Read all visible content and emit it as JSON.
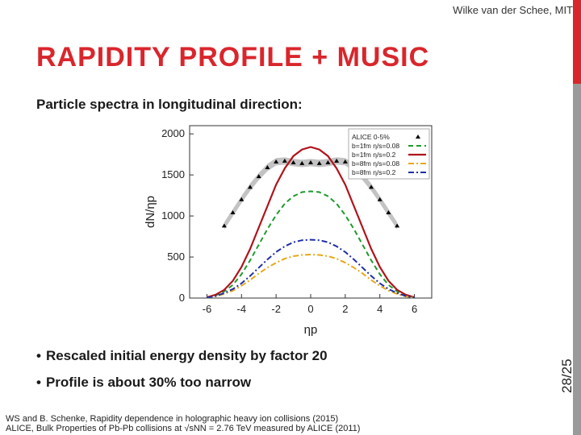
{
  "header": {
    "author": "Wilke van der Schee, MIT"
  },
  "slide": {
    "title": "RAPIDITY PROFILE + MUSIC",
    "subtitle": "Particle spectra in longitudinal direction:",
    "bullets": [
      "Rescaled initial energy density by factor 20",
      "Profile is about 30% too narrow"
    ],
    "references": [
      "WS and B. Schenke, Rapidity dependence in holographic heavy ion collisions (2015)",
      "ALICE, Bulk Properties of Pb-Pb collisions at √sNN = 2.76 TeV measured by ALICE (2011)"
    ],
    "slide_number": "28/25"
  },
  "colors": {
    "accent": "#d9262c",
    "sidebar": "#9a9a9a"
  },
  "chart_data": {
    "type": "line",
    "xlabel": "ηp",
    "ylabel": "dN/ηp",
    "xlim": [
      -7,
      7
    ],
    "ylim": [
      0,
      2100
    ],
    "xticks": [
      "-6",
      "-4",
      "-2",
      "0",
      "2",
      "4",
      "6"
    ],
    "yticks": [
      "0",
      "500",
      "1000",
      "1500",
      "2000"
    ],
    "legend_position": "top-right",
    "series": [
      {
        "name": "ALICE 0-5%",
        "style": "points-with-band",
        "color": "#000000",
        "x": [
          -5,
          -4.5,
          -4,
          -3.5,
          -3,
          -2.5,
          -2,
          -1.5,
          -1,
          -0.5,
          0,
          0.5,
          1,
          1.5,
          2,
          2.5,
          3,
          3.5,
          4,
          4.5,
          5
        ],
        "y": [
          880,
          1040,
          1200,
          1350,
          1480,
          1590,
          1660,
          1670,
          1650,
          1640,
          1650,
          1640,
          1650,
          1670,
          1660,
          1590,
          1480,
          1350,
          1200,
          1040,
          880
        ]
      },
      {
        "name": "b=1fm η/s=0.08",
        "style": "dashed",
        "color": "#1f9a2e",
        "x": [
          -6,
          -5.5,
          -5,
          -4.5,
          -4,
          -3.5,
          -3,
          -2.5,
          -2,
          -1.5,
          -1,
          -0.5,
          0,
          0.5,
          1,
          1.5,
          2,
          2.5,
          3,
          3.5,
          4,
          4.5,
          5,
          5.5,
          6
        ],
        "y": [
          10,
          30,
          80,
          160,
          290,
          460,
          650,
          840,
          1010,
          1150,
          1240,
          1290,
          1300,
          1290,
          1240,
          1150,
          1010,
          840,
          650,
          460,
          290,
          160,
          80,
          30,
          10
        ]
      },
      {
        "name": "b=1fm η/s=0.2",
        "style": "solid",
        "color": "#b0141b",
        "x": [
          -6,
          -5.5,
          -5,
          -4.5,
          -4,
          -3.5,
          -3,
          -2.5,
          -2,
          -1.5,
          -1,
          -0.5,
          0,
          0.5,
          1,
          1.5,
          2,
          2.5,
          3,
          3.5,
          4,
          4.5,
          5,
          5.5,
          6
        ],
        "y": [
          10,
          40,
          100,
          210,
          380,
          600,
          860,
          1120,
          1380,
          1580,
          1730,
          1810,
          1840,
          1810,
          1730,
          1580,
          1380,
          1120,
          860,
          600,
          380,
          210,
          100,
          40,
          10
        ]
      },
      {
        "name": "b=8fm η/s=0.08",
        "style": "dash-dot",
        "color": "#e8a817",
        "x": [
          -6,
          -5.5,
          -5,
          -4.5,
          -4,
          -3.5,
          -3,
          -2.5,
          -2,
          -1.5,
          -1,
          -0.5,
          0,
          0.5,
          1,
          1.5,
          2,
          2.5,
          3,
          3.5,
          4,
          4.5,
          5,
          5.5,
          6
        ],
        "y": [
          5,
          20,
          50,
          90,
          150,
          220,
          300,
          370,
          430,
          480,
          510,
          525,
          530,
          525,
          510,
          480,
          430,
          370,
          300,
          220,
          150,
          90,
          50,
          20,
          5
        ]
      },
      {
        "name": "b=8fm η/s=0.2",
        "style": "dash-dot",
        "color": "#1f2fa8",
        "x": [
          -6,
          -5.5,
          -5,
          -4.5,
          -4,
          -3.5,
          -3,
          -2.5,
          -2,
          -1.5,
          -1,
          -0.5,
          0,
          0.5,
          1,
          1.5,
          2,
          2.5,
          3,
          3.5,
          4,
          4.5,
          5,
          5.5,
          6
        ],
        "y": [
          5,
          25,
          60,
          110,
          180,
          270,
          370,
          470,
          560,
          630,
          680,
          705,
          710,
          705,
          680,
          630,
          560,
          470,
          370,
          270,
          180,
          110,
          60,
          25,
          5
        ]
      }
    ]
  }
}
